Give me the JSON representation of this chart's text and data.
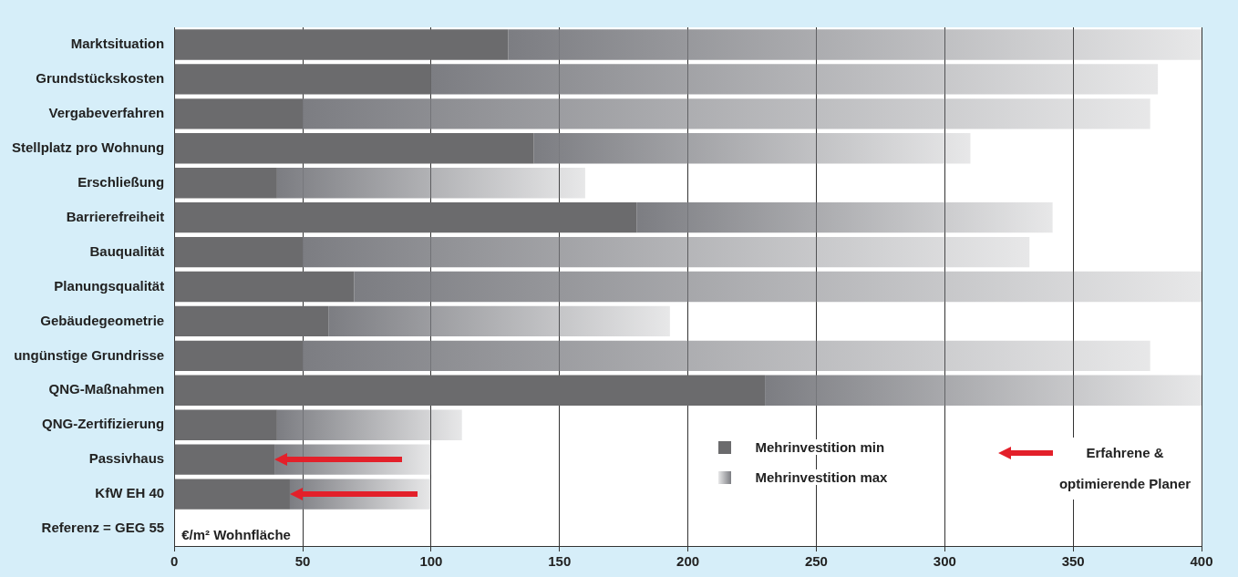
{
  "chart_data": {
    "type": "bar",
    "orientation": "horizontal",
    "stacked": true,
    "categories": [
      "Marktsituation",
      "Grundstückskosten",
      "Vergabeverfahren",
      "Stellplatz pro Wohnung",
      "Erschließung",
      "Barrierefreiheit",
      "Bauqualität",
      "Planungsqualität",
      "Gebäudegeometrie",
      "ungünstige Grundrisse",
      "QNG-Maßnahmen",
      "QNG-Zertifizierung",
      "Passivhaus",
      "KfW EH 40",
      "Referenz = GEG 55"
    ],
    "series": [
      {
        "name": "Mehrinvestition min",
        "color": "#6b6b6d",
        "values": [
          130,
          100,
          50,
          140,
          40,
          180,
          50,
          70,
          60,
          50,
          230,
          40,
          39,
          45,
          null
        ]
      },
      {
        "name": "Mehrinvestition max",
        "color": "#7c7d82",
        "values": [
          270,
          283,
          330,
          170,
          120,
          162,
          283,
          330,
          133,
          330,
          170,
          72,
          61,
          55,
          null
        ]
      }
    ],
    "xlim": [
      0,
      400
    ],
    "xticks": [
      0,
      50,
      100,
      150,
      200,
      250,
      300,
      350,
      400
    ],
    "xlabel": "€/m² Wohnfläche",
    "grid": "x",
    "legend": "bottom right",
    "annotations": [
      "Erfahrene & optimierende Planer"
    ]
  }
}
